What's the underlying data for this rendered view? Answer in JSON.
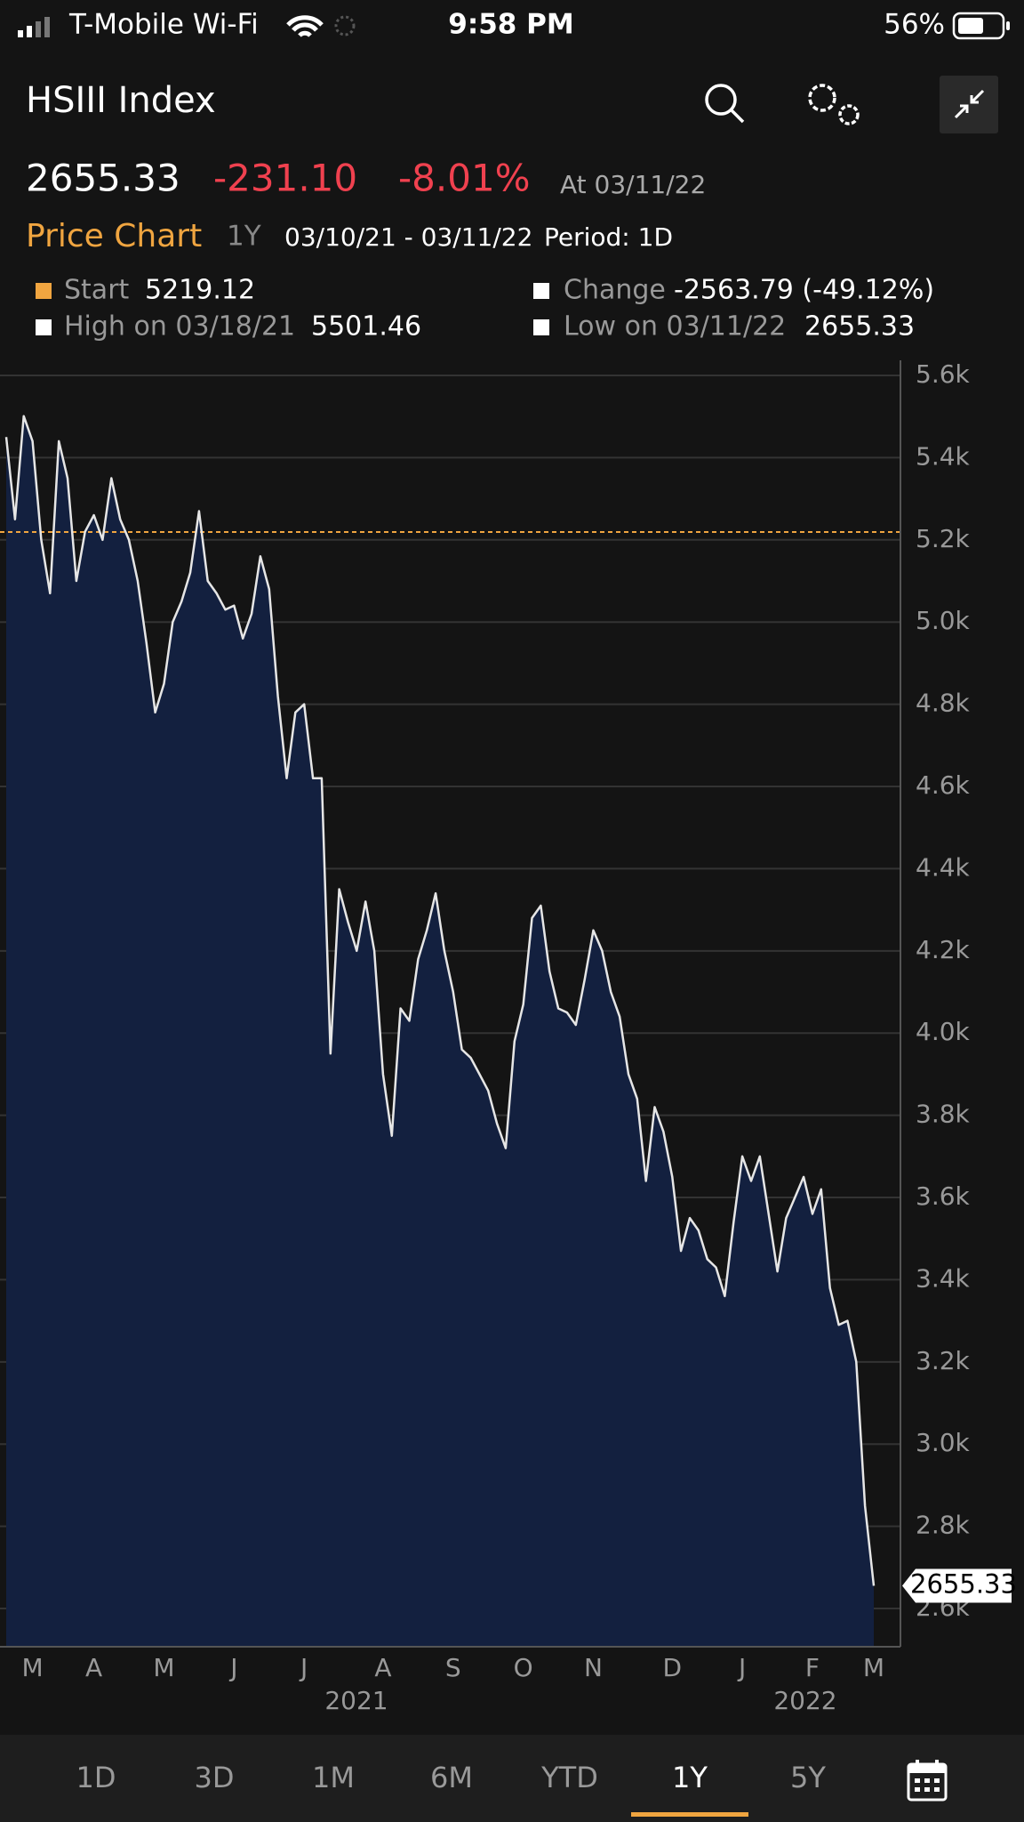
{
  "status_bar": {
    "carrier": "T-Mobile Wi-Fi",
    "time": "9:58 PM",
    "battery": "56%"
  },
  "header": {
    "title": "HSIII Index"
  },
  "quote": {
    "last": "2655.33",
    "change": "-231.10",
    "change_pct": "-8.01%",
    "as_of": "At 03/11/22"
  },
  "chart_header": {
    "title": "Price Chart",
    "range": "1Y",
    "dates": "03/10/21 - 03/11/22",
    "period": "Period: 1D"
  },
  "stats": [
    {
      "label": "Start",
      "value": "5219.12"
    },
    {
      "label": "Change",
      "value": "-2563.79 (-49.12%)"
    },
    {
      "label": "High on 03/18/21",
      "value": "5501.46"
    },
    {
      "label": "Low on 03/11/22",
      "value": "2655.33"
    }
  ],
  "chart_data": {
    "type": "area",
    "color": "#e6e6e6",
    "fill": "#13203f",
    "reference_line": 5219.12,
    "reference_color": "#f0a540",
    "end_label": "2655.33",
    "categories": [
      null,
      null,
      null,
      "M",
      null,
      null,
      null,
      null,
      null,
      null,
      "A",
      null,
      null,
      null,
      null,
      null,
      null,
      null,
      "M",
      null,
      null,
      null,
      null,
      null,
      null,
      null,
      "J",
      null,
      null,
      null,
      null,
      null,
      null,
      null,
      "J",
      null,
      null,
      null,
      null,
      null,
      null,
      null,
      null,
      "A",
      null,
      null,
      null,
      null,
      null,
      null,
      null,
      "S",
      null,
      null,
      null,
      null,
      null,
      null,
      null,
      "O",
      null,
      null,
      null,
      null,
      null,
      null,
      null,
      "N",
      null,
      null,
      null,
      null,
      null,
      null,
      null,
      null,
      "D",
      null,
      null,
      null,
      null,
      null,
      null,
      null,
      "J",
      null,
      null,
      null,
      null,
      null,
      null,
      null,
      "F",
      null,
      null,
      null,
      null,
      null,
      null,
      "M"
    ],
    "values": [
      5450,
      5250,
      5501,
      5440,
      5200,
      5070,
      5440,
      5350,
      5100,
      5220,
      5260,
      5200,
      5350,
      5250,
      5200,
      5100,
      4950,
      4780,
      4850,
      5000,
      5050,
      5120,
      5270,
      5100,
      5070,
      5030,
      5040,
      4960,
      5020,
      5160,
      5080,
      4820,
      4620,
      4780,
      4800,
      4620,
      4620,
      3950,
      4350,
      4270,
      4200,
      4320,
      4200,
      3900,
      3750,
      4060,
      4030,
      4180,
      4250,
      4340,
      4200,
      4100,
      3960,
      3940,
      3900,
      3860,
      3780,
      3720,
      3980,
      4070,
      4280,
      4310,
      4150,
      4060,
      4050,
      4020,
      4130,
      4250,
      4200,
      4100,
      4040,
      3900,
      3840,
      3640,
      3820,
      3760,
      3650,
      3470,
      3550,
      3520,
      3450,
      3430,
      3360,
      3540,
      3700,
      3640,
      3700,
      3560,
      3420,
      3550,
      3600,
      3650,
      3560,
      3620,
      3380,
      3290,
      3300,
      3200,
      2850,
      2655.33
    ],
    "ylim": [
      2507,
      5600
    ],
    "yticks": [
      {
        "value": 2600,
        "label": "2.6k"
      },
      {
        "value": 2800,
        "label": "2.8k"
      },
      {
        "value": 3000,
        "label": "3.0k"
      },
      {
        "value": 3200,
        "label": "3.2k"
      },
      {
        "value": 3400,
        "label": "3.4k"
      },
      {
        "value": 3600,
        "label": "3.6k"
      },
      {
        "value": 3800,
        "label": "3.8k"
      },
      {
        "value": 4000,
        "label": "4.0k"
      },
      {
        "value": 4200,
        "label": "4.2k"
      },
      {
        "value": 4400,
        "label": "4.4k"
      },
      {
        "value": 4600,
        "label": "4.6k"
      },
      {
        "value": 4800,
        "label": "4.8k"
      },
      {
        "value": 5000,
        "label": "5.0k"
      },
      {
        "value": 5200,
        "label": "5.2k"
      },
      {
        "value": 5400,
        "label": "5.4k"
      },
      {
        "value": 5600,
        "label": "5.6k"
      }
    ],
    "grid": true,
    "year_labels": [
      "2021",
      "2022"
    ]
  },
  "tabs": [
    "1D",
    "3D",
    "1M",
    "6M",
    "YTD",
    "1Y",
    "5Y"
  ],
  "selected_tab": "1Y"
}
